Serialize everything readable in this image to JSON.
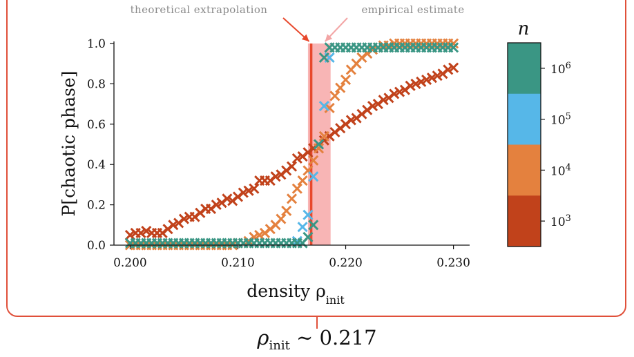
{
  "chart_data": {
    "type": "scatter",
    "xlabel": "density ρ",
    "xlabel_sub": "init",
    "ylabel": "P[chaotic phase]",
    "xlim": [
      0.1985,
      0.2315
    ],
    "ylim": [
      0.0,
      1.0
    ],
    "xticks": [
      "0.200",
      "0.210",
      "0.220",
      "0.230"
    ],
    "xtick_values": [
      0.2,
      0.21,
      0.22,
      0.23
    ],
    "yticks": [
      "0.0",
      "0.2",
      "0.4",
      "0.6",
      "0.8",
      "1.0"
    ],
    "ytick_values": [
      0.0,
      0.2,
      0.4,
      0.6,
      0.8,
      1.0
    ],
    "colorbar": {
      "title": "n",
      "labels": [
        "10",
        "10",
        "10",
        "10"
      ],
      "exponents": [
        "6",
        "5",
        "4",
        "3"
      ],
      "colors": [
        "#3a9684",
        "#56b7e8",
        "#e4813e",
        "#c1421b"
      ]
    },
    "vline": {
      "x": 0.2168,
      "color": "#e8482c",
      "label": "theoretical extrapolation"
    },
    "band": {
      "x0": 0.2165,
      "x1": 0.2186,
      "color": "#f6a3a3",
      "label": "empirical estimate"
    },
    "series": [
      {
        "name": "n = 10^3",
        "color": "#c1421b",
        "x": [
          0.2,
          0.2005,
          0.201,
          0.2015,
          0.202,
          0.2025,
          0.203,
          0.2035,
          0.204,
          0.2045,
          0.205,
          0.2055,
          0.206,
          0.2065,
          0.207,
          0.2075,
          0.208,
          0.2085,
          0.209,
          0.2095,
          0.21,
          0.2105,
          0.211,
          0.2115,
          0.212,
          0.2125,
          0.213,
          0.2135,
          0.214,
          0.2145,
          0.215,
          0.2155,
          0.216,
          0.2165,
          0.217,
          0.2175,
          0.218,
          0.2185,
          0.219,
          0.2195,
          0.22,
          0.2205,
          0.221,
          0.2215,
          0.222,
          0.2225,
          0.223,
          0.2235,
          0.224,
          0.2245,
          0.225,
          0.2255,
          0.226,
          0.2265,
          0.227,
          0.2275,
          0.228,
          0.2285,
          0.229,
          0.2295,
          0.23
        ],
        "y": [
          0.05,
          0.06,
          0.06,
          0.07,
          0.06,
          0.06,
          0.06,
          0.08,
          0.1,
          0.11,
          0.13,
          0.14,
          0.14,
          0.16,
          0.18,
          0.18,
          0.2,
          0.21,
          0.23,
          0.22,
          0.24,
          0.26,
          0.27,
          0.28,
          0.32,
          0.32,
          0.32,
          0.34,
          0.35,
          0.37,
          0.39,
          0.43,
          0.44,
          0.46,
          0.48,
          0.5,
          0.52,
          0.54,
          0.56,
          0.58,
          0.6,
          0.62,
          0.63,
          0.65,
          0.67,
          0.69,
          0.7,
          0.72,
          0.73,
          0.75,
          0.76,
          0.77,
          0.79,
          0.8,
          0.81,
          0.82,
          0.83,
          0.84,
          0.85,
          0.87,
          0.88
        ]
      },
      {
        "name": "n = 10^4",
        "color": "#e4813e",
        "x": [
          0.2,
          0.2005,
          0.201,
          0.2015,
          0.202,
          0.2025,
          0.203,
          0.2035,
          0.204,
          0.2045,
          0.205,
          0.2055,
          0.206,
          0.2065,
          0.207,
          0.2075,
          0.208,
          0.2085,
          0.209,
          0.2095,
          0.21,
          0.2105,
          0.211,
          0.2115,
          0.212,
          0.2125,
          0.213,
          0.2135,
          0.214,
          0.2145,
          0.215,
          0.2155,
          0.216,
          0.2165,
          0.217,
          0.2175,
          0.218,
          0.2185,
          0.219,
          0.2195,
          0.22,
          0.2205,
          0.221,
          0.2215,
          0.222,
          0.2225,
          0.223,
          0.2235,
          0.224,
          0.2245,
          0.225,
          0.2255,
          0.226,
          0.2265,
          0.227,
          0.2275,
          0.228,
          0.2285,
          0.229,
          0.2295,
          0.23
        ],
        "y": [
          0.0,
          0.0,
          0.0,
          0.0,
          0.0,
          0.0,
          0.0,
          0.0,
          0.0,
          0.0,
          0.0,
          0.0,
          0.0,
          0.0,
          0.0,
          0.0,
          0.0,
          0.0,
          0.0,
          0.0,
          0.01,
          0.01,
          0.02,
          0.04,
          0.05,
          0.06,
          0.08,
          0.1,
          0.13,
          0.17,
          0.23,
          0.28,
          0.32,
          0.37,
          0.42,
          0.48,
          0.54,
          0.68,
          0.74,
          0.78,
          0.82,
          0.87,
          0.9,
          0.93,
          0.95,
          0.97,
          0.98,
          0.99,
          0.99,
          1.0,
          1.0,
          1.0,
          1.0,
          1.0,
          1.0,
          1.0,
          1.0,
          1.0,
          1.0,
          1.0,
          1.0
        ]
      },
      {
        "name": "n = 10^5",
        "color": "#56b7e8",
        "x": [
          0.2155,
          0.216,
          0.2165,
          0.217,
          0.2175,
          0.218,
          0.2185
        ],
        "y": [
          0.02,
          0.09,
          0.15,
          0.34,
          0.5,
          0.69,
          0.93
        ]
      },
      {
        "name": "n = 10^6",
        "color": "#3a9684",
        "x": [
          0.2,
          0.2005,
          0.201,
          0.2015,
          0.202,
          0.2025,
          0.203,
          0.2035,
          0.204,
          0.2045,
          0.205,
          0.2055,
          0.206,
          0.2065,
          0.207,
          0.2075,
          0.208,
          0.2085,
          0.209,
          0.2095,
          0.21,
          0.2105,
          0.211,
          0.2115,
          0.212,
          0.2125,
          0.213,
          0.2135,
          0.214,
          0.2145,
          0.215,
          0.2155,
          0.216,
          0.2165,
          0.217,
          0.2175,
          0.218,
          0.2185,
          0.219,
          0.2195,
          0.22,
          0.2205,
          0.221,
          0.2215,
          0.222,
          0.2225,
          0.223,
          0.2235,
          0.224,
          0.2245,
          0.225,
          0.2255,
          0.226,
          0.2265,
          0.227,
          0.2275,
          0.228,
          0.2285,
          0.229,
          0.2295,
          0.23
        ],
        "y": [
          0.01,
          0.01,
          0.01,
          0.01,
          0.01,
          0.01,
          0.01,
          0.01,
          0.01,
          0.01,
          0.01,
          0.01,
          0.01,
          0.01,
          0.01,
          0.01,
          0.01,
          0.01,
          0.01,
          0.01,
          0.01,
          0.01,
          0.01,
          0.01,
          0.01,
          0.01,
          0.01,
          0.01,
          0.01,
          0.01,
          0.01,
          0.01,
          0.01,
          0.04,
          0.1,
          0.5,
          0.93,
          0.98,
          0.98,
          0.98,
          0.98,
          0.98,
          0.98,
          0.98,
          0.98,
          0.98,
          0.98,
          0.98,
          0.98,
          0.98,
          0.98,
          0.98,
          0.98,
          0.98,
          0.98,
          0.98,
          0.98,
          0.98,
          0.98,
          0.98,
          0.98
        ]
      }
    ]
  },
  "annotations": {
    "theoretical": "theoretical extrapolation",
    "empirical": "empirical estimate"
  },
  "bottom_note": {
    "rho": "ρ",
    "sub": "init",
    "rest": " ∼ 0.217"
  }
}
